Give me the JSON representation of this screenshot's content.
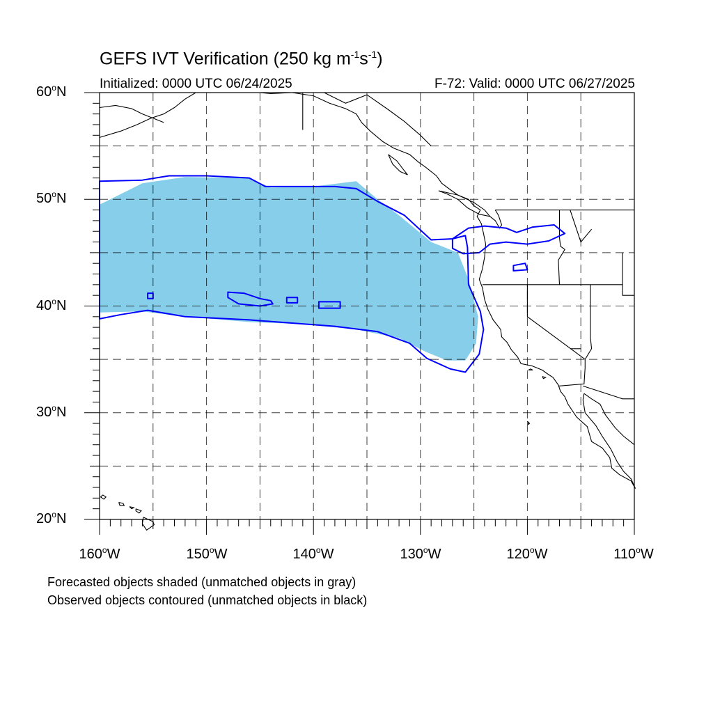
{
  "title_main": "GEFS IVT Verification (250 kg m",
  "title_sup1": "-1",
  "title_mid": "s",
  "title_sup2": "-1",
  "title_end": ")",
  "subtitle_left": "Initialized: 0000 UTC 06/24/2025",
  "subtitle_right": "F-72: Valid: 0000 UTC 06/27/2025",
  "degree_symbol": "o",
  "lat_labels": [
    "60",
    "50",
    "40",
    "30",
    "20"
  ],
  "lat_hemisphere": "N",
  "lon_labels": [
    "160",
    "150",
    "140",
    "130",
    "120",
    "110"
  ],
  "lon_hemisphere": "W",
  "legend_line1": "Forecasted objects shaded (unmatched objects in gray)",
  "legend_line2": "Observed objects contoured (unmatched objects in black)",
  "colors": {
    "forecast_fill": "#87CEEB",
    "observed_contour": "#0000FF",
    "coastline": "#000000",
    "grid": "#000000"
  },
  "chart_data": {
    "type": "map",
    "projection": "cylindrical-equidistant",
    "lon_range": [
      -160,
      -110
    ],
    "lat_range": [
      20,
      60
    ],
    "grid_spacing_deg": 5,
    "grid": true,
    "forecast_object": {
      "name": "forecast",
      "polygon": [
        [
          -160,
          49.5
        ],
        [
          -156,
          51.5
        ],
        [
          -152,
          52.1
        ],
        [
          -146,
          52.0
        ],
        [
          -144,
          51.1
        ],
        [
          -140,
          51.2
        ],
        [
          -136,
          51.7
        ],
        [
          -134,
          50.0
        ],
        [
          -132,
          48.5
        ],
        [
          -129,
          46.0
        ],
        [
          -126.5,
          45.0
        ],
        [
          -125.5,
          42.5
        ],
        [
          -124.6,
          39.0
        ],
        [
          -124.8,
          36.5
        ],
        [
          -125.8,
          34.9
        ],
        [
          -127.5,
          34.9
        ],
        [
          -129.5,
          35.7
        ],
        [
          -132,
          37.0
        ],
        [
          -136,
          37.8
        ],
        [
          -141,
          38.3
        ],
        [
          -146,
          38.5
        ],
        [
          -152,
          39.0
        ],
        [
          -156,
          39.5
        ],
        [
          -160,
          39.4
        ]
      ]
    },
    "observed_objects": [
      {
        "name": "observed-main",
        "polygon": [
          [
            -160,
            51.7
          ],
          [
            -156,
            51.8
          ],
          [
            -153.5,
            52.2
          ],
          [
            -150,
            52.2
          ],
          [
            -146,
            52.0
          ],
          [
            -144.5,
            51.2
          ],
          [
            -142,
            51.2
          ],
          [
            -138,
            51.2
          ],
          [
            -136,
            51.0
          ],
          [
            -134,
            49.8
          ],
          [
            -131.5,
            48.5
          ],
          [
            -129,
            46.2
          ],
          [
            -127,
            46.3
          ],
          [
            -125.8,
            46.6
          ],
          [
            -125.6,
            45.5
          ],
          [
            -125.5,
            42.0
          ],
          [
            -124.4,
            39.5
          ],
          [
            -124.1,
            37.8
          ],
          [
            -124.5,
            35.5
          ],
          [
            -125.8,
            33.8
          ],
          [
            -127.2,
            34.1
          ],
          [
            -129.4,
            35.1
          ],
          [
            -131,
            36.5
          ],
          [
            -134,
            37.6
          ],
          [
            -138,
            38.1
          ],
          [
            -142,
            38.4
          ],
          [
            -146,
            38.7
          ],
          [
            -152,
            39.0
          ],
          [
            -155.5,
            39.6
          ],
          [
            -158,
            39.2
          ],
          [
            -160,
            38.8
          ]
        ]
      },
      {
        "name": "observed-inland",
        "polygon": [
          [
            -127,
            46.3
          ],
          [
            -125.5,
            47.3
          ],
          [
            -124,
            47.5
          ],
          [
            -122,
            47.3
          ],
          [
            -121,
            46.9
          ],
          [
            -119.5,
            47.4
          ],
          [
            -117.5,
            47.6
          ],
          [
            -116.5,
            46.8
          ],
          [
            -118,
            46.1
          ],
          [
            -120,
            45.8
          ],
          [
            -122,
            46.0
          ],
          [
            -123.5,
            45.8
          ],
          [
            -124.5,
            45.0
          ],
          [
            -126,
            44.9
          ],
          [
            -127,
            45.4
          ]
        ]
      },
      {
        "name": "observed-blob-1",
        "polygon": [
          [
            -155.5,
            41.2
          ],
          [
            -155.0,
            41.2
          ],
          [
            -155.0,
            40.7
          ],
          [
            -155.5,
            40.7
          ]
        ]
      },
      {
        "name": "observed-blob-2",
        "polygon": [
          [
            -148,
            41.3
          ],
          [
            -146.5,
            41.2
          ],
          [
            -145,
            40.7
          ],
          [
            -144,
            40.5
          ],
          [
            -143.8,
            40.2
          ],
          [
            -145,
            40.0
          ],
          [
            -147,
            40.2
          ],
          [
            -148,
            40.8
          ]
        ]
      },
      {
        "name": "observed-blob-3",
        "polygon": [
          [
            -142.5,
            40.8
          ],
          [
            -141.5,
            40.8
          ],
          [
            -141.5,
            40.3
          ],
          [
            -142.5,
            40.3
          ]
        ]
      },
      {
        "name": "observed-blob-4",
        "polygon": [
          [
            -139.5,
            40.4
          ],
          [
            -137.5,
            40.4
          ],
          [
            -137.5,
            39.8
          ],
          [
            -139.5,
            39.8
          ]
        ]
      },
      {
        "name": "observed-blob-5",
        "polygon": [
          [
            -121.3,
            43.8
          ],
          [
            -120.2,
            44.0
          ],
          [
            -120.0,
            43.4
          ],
          [
            -121.3,
            43.3
          ]
        ]
      }
    ]
  }
}
